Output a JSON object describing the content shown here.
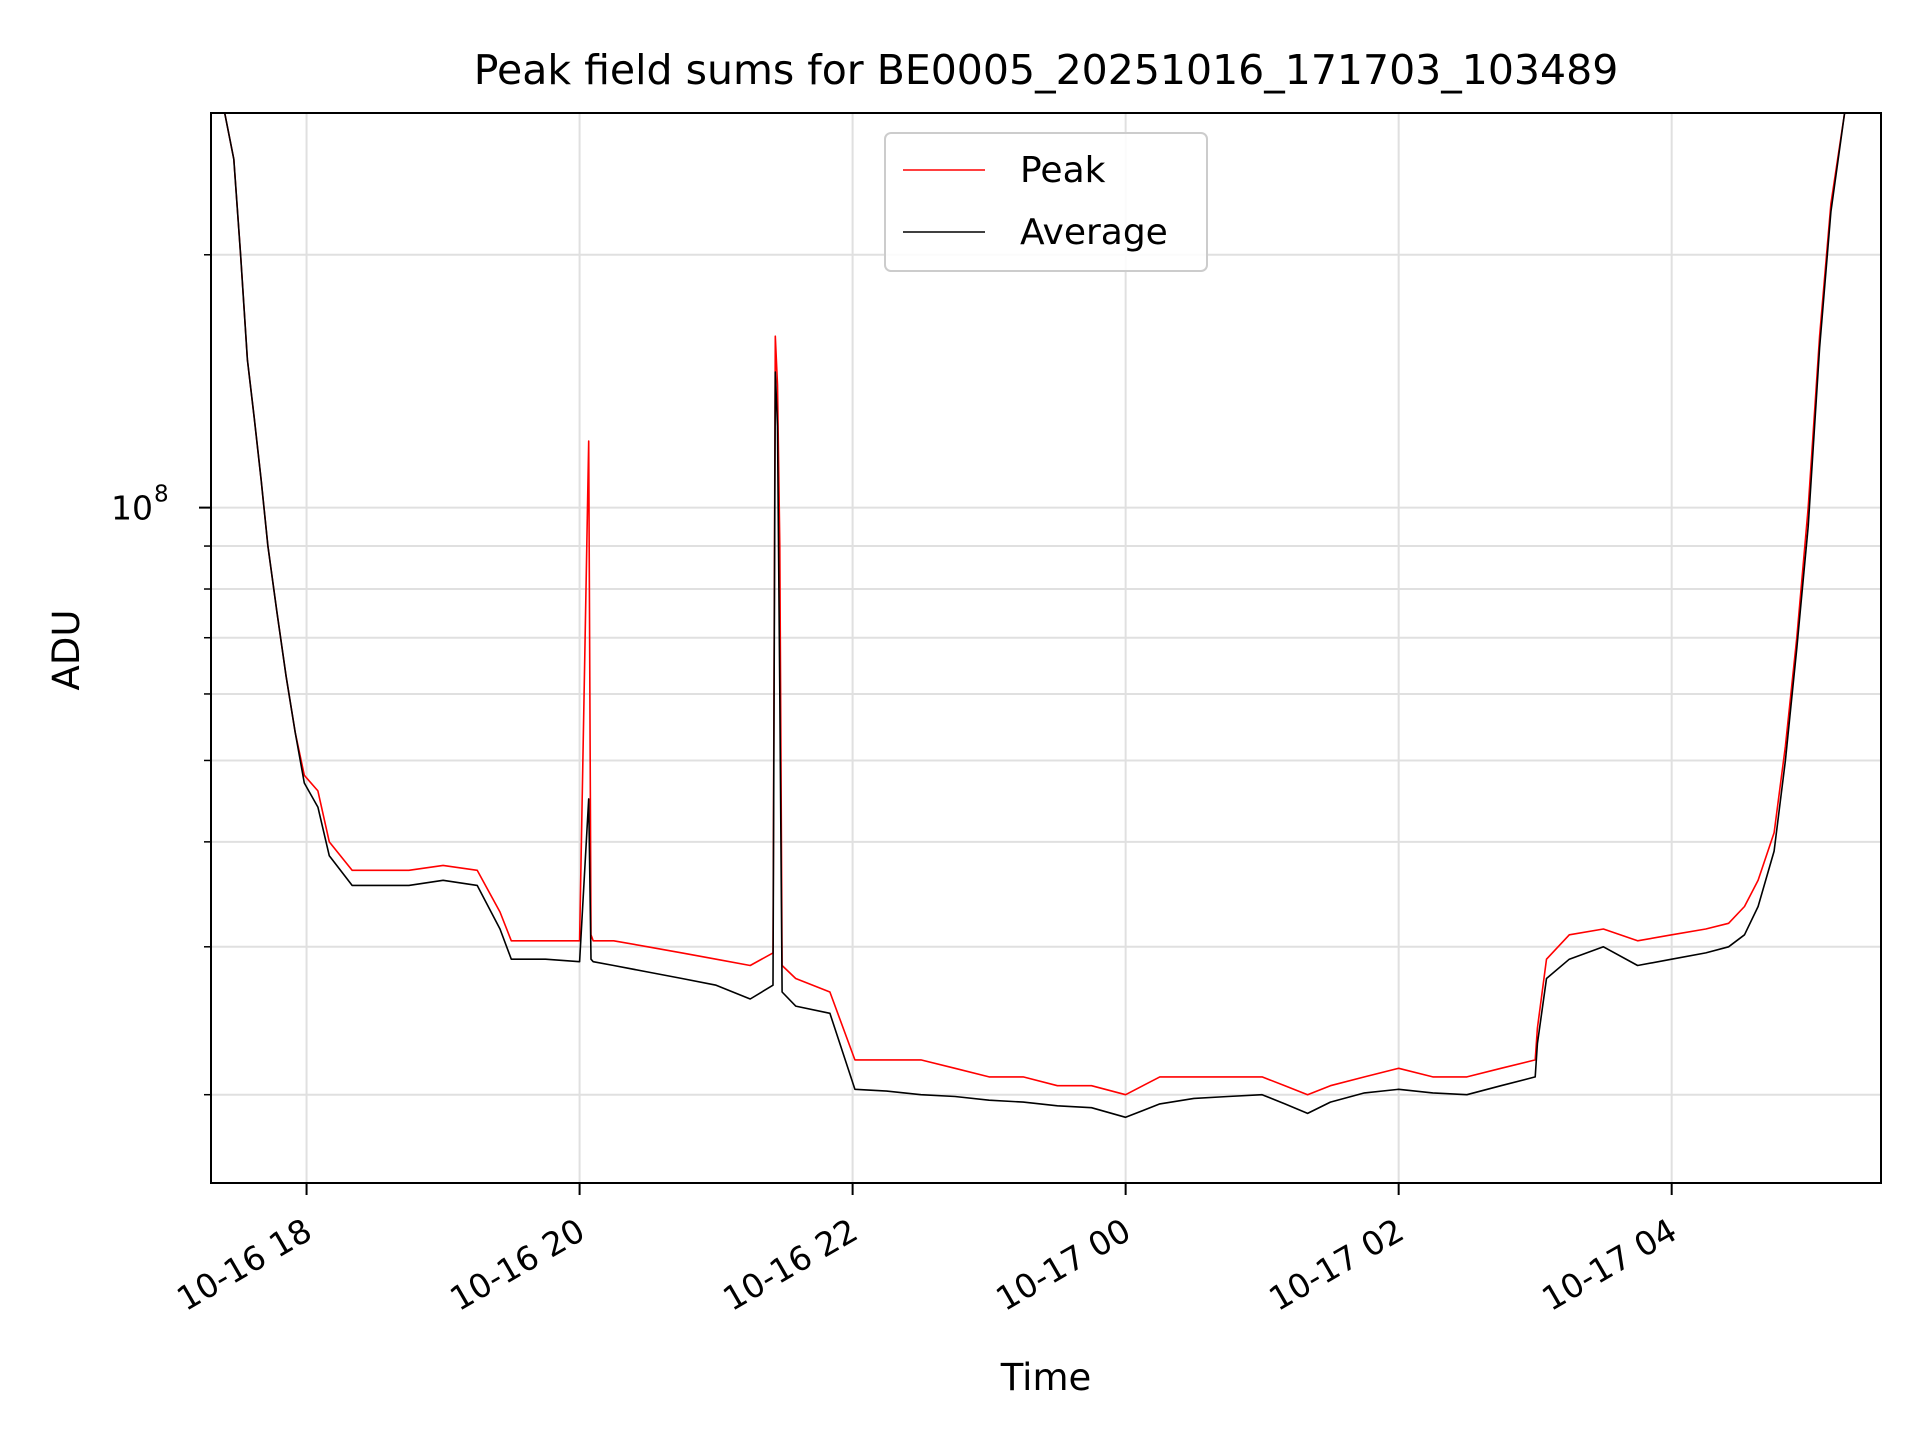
{
  "chart_data": {
    "type": "line",
    "title": "Peak field sums for BE0005_20251016_171703_103489",
    "xlabel": "Time",
    "ylabel": "ADU",
    "yscale": "log",
    "grid": true,
    "legend_position": "top-center",
    "x_range": [
      "2025-10-16 17:18",
      "2025-10-17 05:32"
    ],
    "y_range": [
      15700000,
      295000000
    ],
    "x_ticks": [
      {
        "t": "2025-10-16 18:00",
        "label": "10-16 18"
      },
      {
        "t": "2025-10-16 20:00",
        "label": "10-16 20"
      },
      {
        "t": "2025-10-16 22:00",
        "label": "10-16 22"
      },
      {
        "t": "2025-10-17 00:00",
        "label": "10-17 00"
      },
      {
        "t": "2025-10-17 02:00",
        "label": "10-17 02"
      },
      {
        "t": "2025-10-17 04:00",
        "label": "10-17 04"
      }
    ],
    "y_major_tick": {
      "value": 100000000,
      "base": "10",
      "exponent": "8"
    },
    "y_minor_ticks": [
      20000000,
      30000000,
      40000000,
      50000000,
      60000000,
      70000000,
      80000000,
      90000000,
      200000000
    ],
    "series": [
      {
        "name": "Peak",
        "color": "#ff0000",
        "x": [
          "2025-10-16 17:24",
          "2025-10-16 17:28",
          "2025-10-16 17:31",
          "2025-10-16 17:34",
          "2025-10-16 17:37",
          "2025-10-16 17:40",
          "2025-10-16 17:43",
          "2025-10-16 17:47",
          "2025-10-16 17:51",
          "2025-10-16 17:55",
          "2025-10-16 17:59",
          "2025-10-16 18:05",
          "2025-10-16 18:10",
          "2025-10-16 18:20",
          "2025-10-16 18:30",
          "2025-10-16 18:45",
          "2025-10-16 19:00",
          "2025-10-16 19:15",
          "2025-10-16 19:25",
          "2025-10-16 19:30",
          "2025-10-16 19:45",
          "2025-10-16 20:00",
          "2025-10-16 20:04",
          "2025-10-16 20:05",
          "2025-10-16 20:06",
          "2025-10-16 20:15",
          "2025-10-16 20:30",
          "2025-10-16 20:45",
          "2025-10-16 21:00",
          "2025-10-16 21:15",
          "2025-10-16 21:25",
          "2025-10-16 21:26",
          "2025-10-16 21:27",
          "2025-10-16 21:28",
          "2025-10-16 21:29",
          "2025-10-16 21:35",
          "2025-10-16 21:50",
          "2025-10-16 22:01",
          "2025-10-16 22:15",
          "2025-10-16 22:30",
          "2025-10-16 22:45",
          "2025-10-16 23:00",
          "2025-10-16 23:15",
          "2025-10-16 23:30",
          "2025-10-16 23:45",
          "2025-10-17 00:00",
          "2025-10-17 00:15",
          "2025-10-17 00:30",
          "2025-10-17 00:45",
          "2025-10-17 01:00",
          "2025-10-17 01:10",
          "2025-10-17 01:20",
          "2025-10-17 01:30",
          "2025-10-17 01:45",
          "2025-10-17 02:00",
          "2025-10-17 02:15",
          "2025-10-17 02:30",
          "2025-10-17 02:45",
          "2025-10-17 03:00",
          "2025-10-17 03:01",
          "2025-10-17 03:05",
          "2025-10-17 03:15",
          "2025-10-17 03:30",
          "2025-10-17 03:45",
          "2025-10-17 04:00",
          "2025-10-17 04:15",
          "2025-10-17 04:25",
          "2025-10-17 04:32",
          "2025-10-17 04:38",
          "2025-10-17 04:45",
          "2025-10-17 04:50",
          "2025-10-17 04:55",
          "2025-10-17 05:00",
          "2025-10-17 05:05",
          "2025-10-17 05:10",
          "2025-10-17 05:16",
          "2025-10-17 05:20",
          "2025-10-17 05:25"
        ],
        "y": [
          295000000,
          260000000,
          200000000,
          150000000,
          128000000,
          108000000,
          90000000,
          75000000,
          63000000,
          54000000,
          48000000,
          46000000,
          40000000,
          37000000,
          37000000,
          37000000,
          37500000,
          37000000,
          33000000,
          30500000,
          30500000,
          30500000,
          120000000,
          31000000,
          30500000,
          30500000,
          30000000,
          29500000,
          29000000,
          28500000,
          29500000,
          160000000,
          140000000,
          90000000,
          28500000,
          27500000,
          26500000,
          22000000,
          22000000,
          22000000,
          21500000,
          21000000,
          21000000,
          20500000,
          20500000,
          20000000,
          21000000,
          21000000,
          21000000,
          21000000,
          20500000,
          20000000,
          20500000,
          21000000,
          21500000,
          21000000,
          21000000,
          21500000,
          22000000,
          24000000,
          29000000,
          31000000,
          31500000,
          30500000,
          31000000,
          31500000,
          32000000,
          33500000,
          36000000,
          41000000,
          52000000,
          70000000,
          100000000,
          160000000,
          230000000,
          295000000,
          295000000,
          295000000
        ]
      },
      {
        "name": "Average",
        "color": "#000000",
        "x": [
          "2025-10-16 17:24",
          "2025-10-16 17:28",
          "2025-10-16 17:31",
          "2025-10-16 17:34",
          "2025-10-16 17:37",
          "2025-10-16 17:40",
          "2025-10-16 17:43",
          "2025-10-16 17:47",
          "2025-10-16 17:51",
          "2025-10-16 17:55",
          "2025-10-16 17:59",
          "2025-10-16 18:05",
          "2025-10-16 18:10",
          "2025-10-16 18:20",
          "2025-10-16 18:30",
          "2025-10-16 18:45",
          "2025-10-16 19:00",
          "2025-10-16 19:15",
          "2025-10-16 19:25",
          "2025-10-16 19:30",
          "2025-10-16 19:45",
          "2025-10-16 20:00",
          "2025-10-16 20:04",
          "2025-10-16 20:05",
          "2025-10-16 20:06",
          "2025-10-16 20:15",
          "2025-10-16 20:30",
          "2025-10-16 20:45",
          "2025-10-16 21:00",
          "2025-10-16 21:15",
          "2025-10-16 21:25",
          "2025-10-16 21:26",
          "2025-10-16 21:27",
          "2025-10-16 21:28",
          "2025-10-16 21:29",
          "2025-10-16 21:35",
          "2025-10-16 21:50",
          "2025-10-16 22:01",
          "2025-10-16 22:15",
          "2025-10-16 22:30",
          "2025-10-16 22:45",
          "2025-10-16 23:00",
          "2025-10-16 23:15",
          "2025-10-16 23:30",
          "2025-10-16 23:45",
          "2025-10-17 00:00",
          "2025-10-17 00:15",
          "2025-10-17 00:30",
          "2025-10-17 00:45",
          "2025-10-17 01:00",
          "2025-10-17 01:10",
          "2025-10-17 01:20",
          "2025-10-17 01:30",
          "2025-10-17 01:45",
          "2025-10-17 02:00",
          "2025-10-17 02:15",
          "2025-10-17 02:30",
          "2025-10-17 02:45",
          "2025-10-17 03:00",
          "2025-10-17 03:01",
          "2025-10-17 03:05",
          "2025-10-17 03:15",
          "2025-10-17 03:30",
          "2025-10-17 03:45",
          "2025-10-17 04:00",
          "2025-10-17 04:15",
          "2025-10-17 04:25",
          "2025-10-17 04:32",
          "2025-10-17 04:38",
          "2025-10-17 04:45",
          "2025-10-17 04:50",
          "2025-10-17 04:55",
          "2025-10-17 05:00",
          "2025-10-17 05:05",
          "2025-10-17 05:10",
          "2025-10-17 05:16",
          "2025-10-17 05:20",
          "2025-10-17 05:25"
        ],
        "y": [
          295000000,
          260000000,
          200000000,
          150000000,
          128000000,
          108000000,
          90000000,
          75000000,
          63000000,
          54000000,
          47000000,
          44000000,
          38500000,
          35500000,
          35500000,
          35500000,
          36000000,
          35500000,
          31500000,
          29000000,
          29000000,
          28800000,
          45000000,
          29000000,
          28800000,
          28500000,
          28000000,
          27500000,
          27000000,
          26000000,
          27000000,
          145000000,
          125000000,
          60000000,
          26500000,
          25500000,
          25000000,
          20300000,
          20200000,
          20000000,
          19900000,
          19700000,
          19600000,
          19400000,
          19300000,
          18800000,
          19500000,
          19800000,
          19900000,
          20000000,
          19500000,
          19000000,
          19600000,
          20100000,
          20300000,
          20100000,
          20000000,
          20500000,
          21000000,
          23000000,
          27500000,
          29000000,
          30000000,
          28500000,
          29000000,
          29500000,
          30000000,
          31000000,
          33500000,
          39000000,
          50000000,
          68000000,
          95000000,
          155000000,
          225000000,
          295000000,
          295000000,
          295000000
        ]
      }
    ]
  }
}
